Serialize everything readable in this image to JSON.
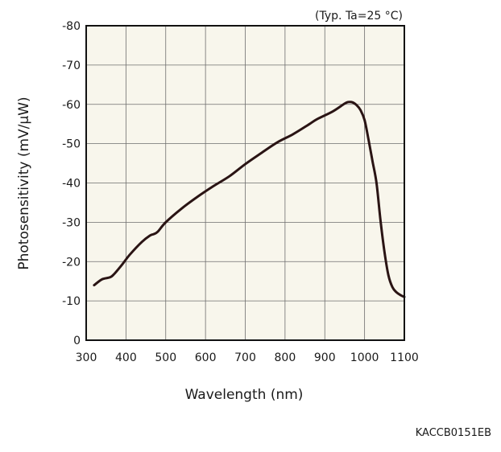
{
  "chart_data": {
    "type": "line",
    "title": "",
    "xlabel": "Wavelength (nm)",
    "ylabel": "Photosensitivity (mV/µW)",
    "condition_note": "(Typ. Ta=25 °C)",
    "figure_code": "KACCB0151EB",
    "xlim": [
      300,
      1100
    ],
    "ylim": [
      0,
      -80
    ],
    "x_ticks": [
      300,
      400,
      500,
      600,
      700,
      800,
      900,
      1000,
      1100
    ],
    "x_tick_labels": [
      "300",
      "400",
      "500",
      "600",
      "700",
      "800",
      "900",
      "1000",
      "1100"
    ],
    "y_ticks": [
      0,
      -10,
      -20,
      -30,
      -40,
      -50,
      -60,
      -70,
      -80
    ],
    "y_tick_labels": [
      "0",
      "-10",
      "-20",
      "-30",
      "-40",
      "-50",
      "-60",
      "-70",
      "-80"
    ],
    "grid": true,
    "colors": {
      "plot_background": "#f8f6ec",
      "grid": "#6e6e6e",
      "frame": "#111111",
      "curve": "#2a1414"
    },
    "series": [
      {
        "x": [
          320,
          340,
          360,
          370,
          390,
          410,
          440,
          460,
          470,
          480,
          500,
          540,
          580,
          620,
          660,
          700,
          740,
          780,
          820,
          860,
          880,
          920,
          950,
          960,
          970,
          980,
          990,
          1000,
          1010,
          1020,
          1030,
          1040,
          1050,
          1060,
          1070,
          1080,
          1090,
          1100
        ],
        "y": [
          -14,
          -15.5,
          -16,
          -16.8,
          -19.2,
          -21.8,
          -25,
          -26.6,
          -27,
          -27.6,
          -30,
          -33.5,
          -36.5,
          -39.2,
          -41.7,
          -44.8,
          -47.6,
          -50.3,
          -52.4,
          -54.9,
          -56.2,
          -58.2,
          -60.2,
          -60.6,
          -60.5,
          -59.8,
          -58.5,
          -56,
          -51,
          -45.5,
          -40,
          -30.5,
          -22.5,
          -16.5,
          -13.5,
          -12.2,
          -11.5,
          -11
        ]
      }
    ]
  }
}
